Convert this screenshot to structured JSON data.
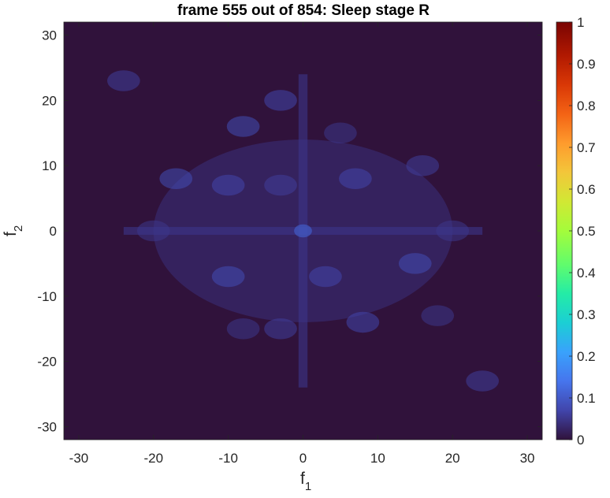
{
  "chart_data": {
    "type": "heatmap",
    "title": "frame 555 out of 854: Sleep stage R",
    "xlabel": "f",
    "xlabel_subscript": "1",
    "ylabel": "f",
    "ylabel_subscript": "2",
    "xlim": [
      -32,
      32
    ],
    "ylim": [
      -32,
      32
    ],
    "xticks": [
      -30,
      -20,
      -10,
      0,
      10,
      20,
      30
    ],
    "yticks": [
      -30,
      -20,
      -10,
      0,
      10,
      20,
      30
    ],
    "colorbar": {
      "colormap": "turbo",
      "clim": [
        0,
        1
      ],
      "ticks": [
        0,
        0.1,
        0.2,
        0.3,
        0.4,
        0.5,
        0.6,
        0.7,
        0.8,
        0.9,
        1
      ]
    },
    "background_value": 0.0,
    "center_peak": {
      "f1": 0,
      "f2": 0,
      "value": 0.12
    },
    "hotspots": [
      {
        "f1": -17,
        "f2": 8,
        "value": 0.08
      },
      {
        "f1": -8,
        "f2": 16,
        "value": 0.08
      },
      {
        "f1": -3,
        "f2": 20,
        "value": 0.07
      },
      {
        "f1": 7,
        "f2": 8,
        "value": 0.07
      },
      {
        "f1": 16,
        "f2": 10,
        "value": 0.06
      },
      {
        "f1": -10,
        "f2": 7,
        "value": 0.07
      },
      {
        "f1": -3,
        "f2": 7,
        "value": 0.06
      },
      {
        "f1": -20,
        "f2": 0,
        "value": 0.05
      },
      {
        "f1": -10,
        "f2": -7,
        "value": 0.08
      },
      {
        "f1": 3,
        "f2": -7,
        "value": 0.07
      },
      {
        "f1": 15,
        "f2": -5,
        "value": 0.08
      },
      {
        "f1": 8,
        "f2": -14,
        "value": 0.07
      },
      {
        "f1": -3,
        "f2": -15,
        "value": 0.06
      },
      {
        "f1": 18,
        "f2": -13,
        "value": 0.05
      },
      {
        "f1": -24,
        "f2": 23,
        "value": 0.06
      },
      {
        "f1": 24,
        "f2": -23,
        "value": 0.06
      },
      {
        "f1": 5,
        "f2": 15,
        "value": 0.05
      },
      {
        "f1": -8,
        "f2": -15,
        "value": 0.05
      },
      {
        "f1": 20,
        "f2": 0,
        "value": 0.05
      }
    ]
  }
}
